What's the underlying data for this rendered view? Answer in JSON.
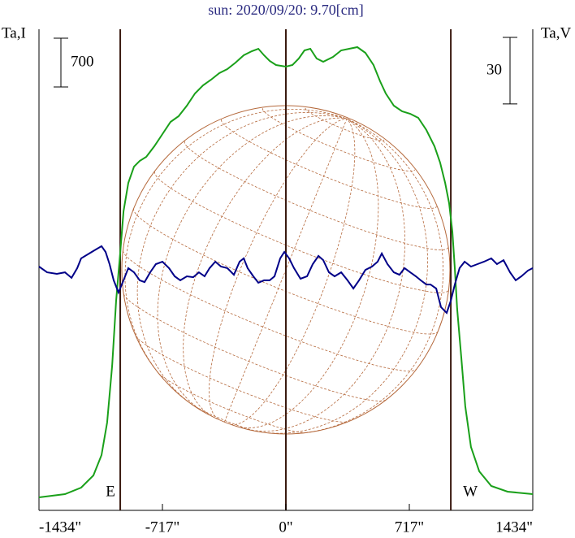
{
  "chart_data": {
    "type": "line",
    "title": "sun: 2020/09/20: 9.70[cm]",
    "y_label": "Ta,I",
    "y2_label": "Ta,V",
    "xlim": [
      -1434,
      1434
    ],
    "xticks": [
      {
        "value": -1434,
        "label": "-1434\""
      },
      {
        "value": -717,
        "label": "-717\""
      },
      {
        "value": 0,
        "label": "0\""
      },
      {
        "value": 717,
        "label": "717\""
      },
      {
        "value": 1434,
        "label": "1434\""
      }
    ],
    "ylim": [
      0,
      7000
    ],
    "y2lim": [
      -110,
      110
    ],
    "y_scale_bar": 700,
    "y2_scale_bar": 30,
    "vlines": [
      -962,
      0,
      958
    ],
    "limb_labels": [
      "E",
      "W"
    ],
    "series": [
      {
        "color": "#1aa01a",
        "x": [
          -1434,
          -1283,
          -1189,
          -1118,
          -1071,
          -1038,
          -1009,
          -986,
          -962,
          -943,
          -915,
          -882,
          -849,
          -811,
          -764,
          -717,
          -670,
          -623,
          -575,
          -528,
          -481,
          -434,
          -387,
          -340,
          -292,
          -245,
          -198,
          -160,
          -127,
          -94,
          -57,
          0,
          38,
          75,
          108,
          142,
          179,
          217,
          274,
          321,
          368,
          415,
          462,
          509,
          547,
          580,
          627,
          675,
          722,
          769,
          816,
          863,
          896,
          925,
          948,
          967,
          981,
          995,
          1019,
          1042,
          1075,
          1123,
          1193,
          1288,
          1434
        ],
        "values": [
          187,
          233,
          327,
          502,
          793,
          1260,
          2077,
          3010,
          3710,
          4293,
          4702,
          4935,
          5017,
          5075,
          5227,
          5402,
          5577,
          5658,
          5810,
          5985,
          6102,
          6183,
          6277,
          6335,
          6428,
          6533,
          6592,
          6627,
          6533,
          6452,
          6393,
          6370,
          6393,
          6487,
          6603,
          6627,
          6487,
          6440,
          6510,
          6603,
          6627,
          6650,
          6568,
          6393,
          6160,
          5985,
          5810,
          5728,
          5693,
          5635,
          5460,
          5227,
          4993,
          4702,
          4410,
          4002,
          3477,
          2893,
          2193,
          1493,
          910,
          560,
          350,
          268,
          233
        ]
      },
      {
        "color": "#000088",
        "axis": "y2",
        "x": [
          -1434,
          -1387,
          -1330,
          -1283,
          -1245,
          -1212,
          -1189,
          -1142,
          -1104,
          -1071,
          -1047,
          -1024,
          -1000,
          -972,
          -943,
          -915,
          -882,
          -849,
          -821,
          -788,
          -755,
          -717,
          -679,
          -646,
          -613,
          -575,
          -538,
          -505,
          -472,
          -443,
          -410,
          -377,
          -340,
          -302,
          -269,
          -245,
          -222,
          -189,
          -160,
          -127,
          -94,
          -66,
          -33,
          -9,
          19,
          47,
          85,
          123,
          156,
          189,
          217,
          250,
          283,
          321,
          358,
          392,
          425,
          462,
          500,
          533,
          557,
          590,
          627,
          660,
          689,
          722,
          755,
          783,
          816,
          840,
          873,
          901,
          934,
          958,
          981,
          1009,
          1038,
          1075,
          1113,
          1151,
          1193,
          1226,
          1264,
          1302,
          1335,
          1368,
          1406,
          1434
        ],
        "values": [
          0,
          -2.6,
          -3.3,
          -2.6,
          -5.1,
          -0.7,
          3.7,
          5.9,
          7.7,
          9.2,
          6.6,
          1.1,
          -6.2,
          -11.7,
          -6.2,
          -0.7,
          -2.6,
          -6.2,
          -7.0,
          -2.6,
          1.1,
          2.2,
          -0.7,
          -4.4,
          -6.2,
          -4.4,
          -4.8,
          -2.6,
          -4.4,
          -0.7,
          2.2,
          0,
          -0.7,
          -3.7,
          2.2,
          3.7,
          -0.7,
          -4.4,
          -7.3,
          -6.2,
          -6.2,
          -4.4,
          3.7,
          6.6,
          3.7,
          -0.7,
          -5.5,
          -4.4,
          1.1,
          4.8,
          2.9,
          -2.6,
          -4.4,
          -2.6,
          -6.2,
          -9.9,
          -6.2,
          -1.5,
          0,
          2.2,
          5.9,
          1.1,
          -2.6,
          -3.7,
          -0.7,
          -2.6,
          -4.4,
          -6.2,
          -8.1,
          -8.1,
          -9.9,
          -18.3,
          -20.9,
          -15.4,
          -8.1,
          -0.7,
          2.2,
          0,
          1.1,
          2.2,
          3.7,
          1.1,
          2.9,
          -2.6,
          -6.2,
          -4.4,
          -1.8,
          -0.7
        ]
      }
    ]
  }
}
